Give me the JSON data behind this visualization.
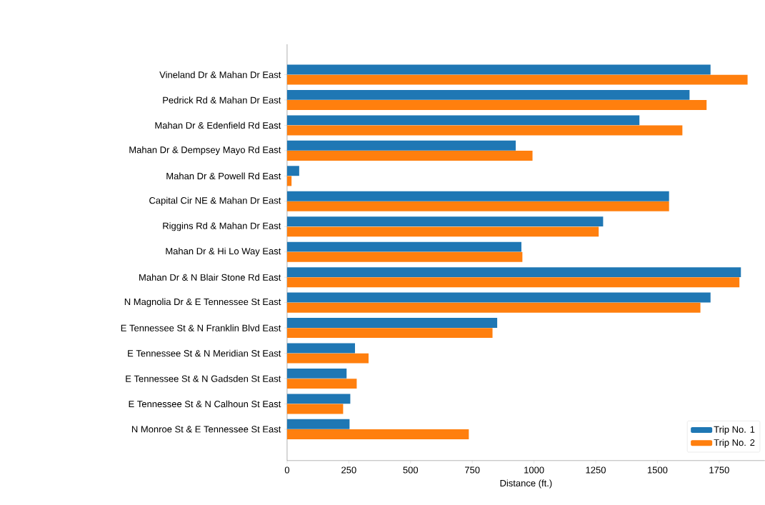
{
  "chart_data": {
    "type": "bar",
    "orientation": "horizontal",
    "categories": [
      "Vineland Dr & Mahan Dr East",
      "Pedrick Rd & Mahan Dr East",
      "Mahan Dr & Edenfield Rd East",
      "Mahan Dr & Dempsey Mayo Rd East",
      "Mahan Dr & Powell Rd East",
      "Capital Cir NE & Mahan Dr East",
      "Riggins Rd & Mahan Dr East",
      "Mahan Dr & Hi Lo Way East",
      "Mahan Dr & N Blair Stone Rd East",
      "N Magnolia Dr & E Tennessee St East",
      "E Tennessee St & N Franklin Blvd East",
      "E Tennessee St & N Meridian St East",
      "E Tennessee St & N Gadsden St East",
      "E Tennessee St & N Calhoun St East",
      "N Monroe St & E Tennessee St East"
    ],
    "series": [
      {
        "name": "Trip No. 1",
        "color": "#1f77b4",
        "values": [
          1715,
          1630,
          1427,
          926,
          49,
          1547,
          1280,
          949,
          1838,
          1715,
          851,
          275,
          241,
          256,
          253
        ]
      },
      {
        "name": "Trip No. 2",
        "color": "#ff7f0e",
        "values": [
          1865,
          1699,
          1601,
          994,
          18,
          1547,
          1262,
          953,
          1832,
          1674,
          832,
          330,
          282,
          227,
          736
        ]
      }
    ],
    "xlabel": "Distance (ft.)",
    "xlim": [
      0,
      1935
    ],
    "xticks": [
      0,
      250,
      500,
      750,
      1000,
      1250,
      1500,
      1750
    ],
    "legend": "bottom right"
  }
}
